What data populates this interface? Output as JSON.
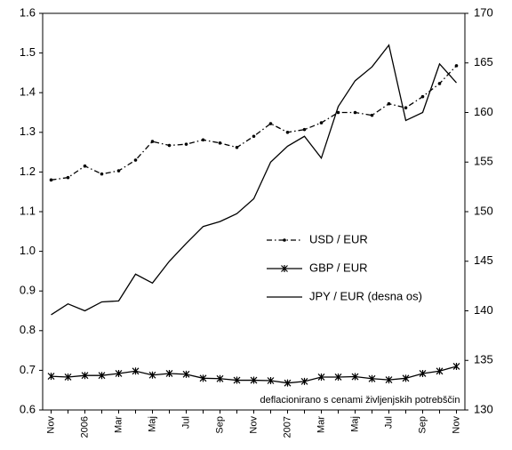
{
  "chart_data": {
    "type": "line",
    "annotation": "deflacionirano s cenami življenjskih potrebščin",
    "categories": [
      "Nov",
      null,
      "2006",
      null,
      "Mar",
      null,
      "Maj",
      null,
      "Jul",
      null,
      "Sep",
      null,
      "Nov",
      null,
      "2007",
      null,
      "Mar",
      null,
      "Maj",
      null,
      "Jul",
      null,
      "Sep",
      null,
      "Nov"
    ],
    "series": [
      {
        "name": "USD / EUR",
        "color": "#000000",
        "line_style": "dash-dot",
        "marker": "dot",
        "values": [
          1.18,
          1.186,
          1.215,
          1.195,
          1.203,
          1.23,
          1.277,
          1.267,
          1.27,
          1.281,
          1.273,
          1.262,
          1.29,
          1.322,
          1.3,
          1.307,
          1.324,
          1.35,
          1.35,
          1.343,
          1.372,
          1.362,
          1.39,
          1.423,
          1.468
        ]
      },
      {
        "name": "GBP / EUR",
        "color": "#000000",
        "line_style": "solid",
        "marker": "asterisk",
        "values": [
          0.685,
          0.683,
          0.687,
          0.687,
          0.692,
          0.698,
          0.688,
          0.692,
          0.69,
          0.68,
          0.679,
          0.675,
          0.675,
          0.674,
          0.668,
          0.672,
          0.683,
          0.683,
          0.684,
          0.679,
          0.676,
          0.68,
          0.692,
          0.698,
          0.71
        ]
      },
      {
        "name": "JPY / EUR (desna os)",
        "color": "#000000",
        "line_style": "solid",
        "marker": "none",
        "axis": "y2",
        "values": [
          139.6,
          140.7,
          140.0,
          140.9,
          141.0,
          143.7,
          142.8,
          145.0,
          146.8,
          148.5,
          149.0,
          149.8,
          151.3,
          155.0,
          156.6,
          157.6,
          155.4,
          160.6,
          163.2,
          164.6,
          166.8,
          159.2,
          160.0,
          164.9,
          163.0
        ]
      }
    ],
    "ylim": [
      0.6,
      1.6
    ],
    "yticks": [
      0.6,
      0.7,
      0.8,
      0.9,
      {
        "value": 1.0,
        "label": "1.0"
      },
      1.1,
      1.2,
      1.3,
      1.4,
      1.5,
      1.6
    ],
    "y2lim": [
      130,
      170
    ],
    "y2ticks": [
      130,
      135,
      140,
      145,
      150,
      155,
      160,
      165,
      170
    ],
    "legend": "center-right",
    "grid": false
  }
}
